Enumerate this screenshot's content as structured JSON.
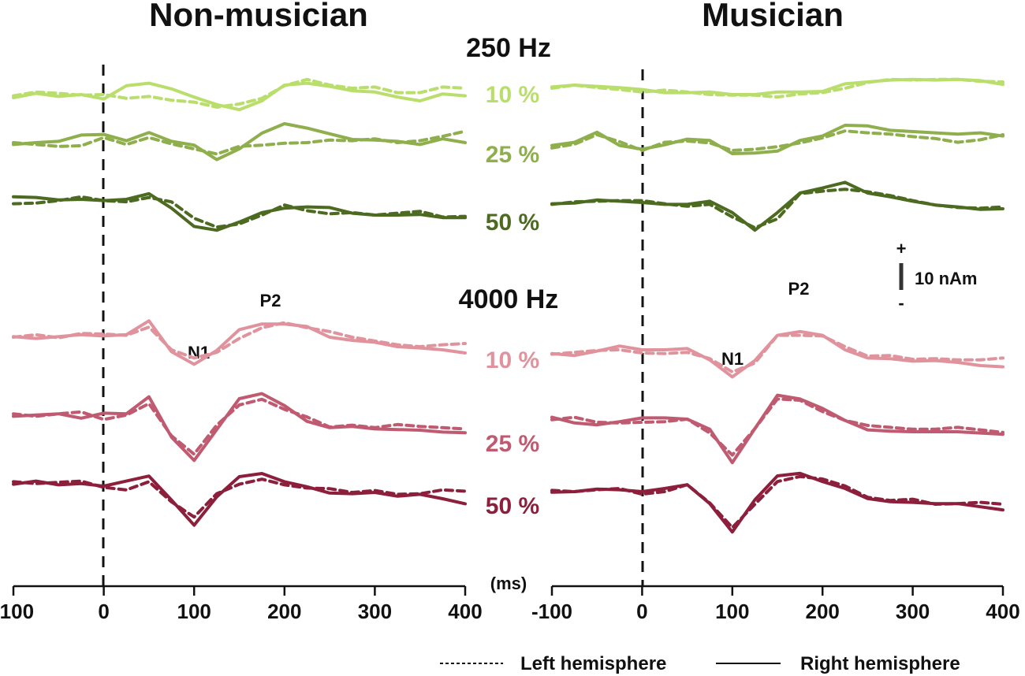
{
  "chart_data": {
    "type": "line",
    "panels": [
      {
        "title": "Non-musician"
      },
      {
        "title": "Musician"
      }
    ],
    "x": [
      -100,
      -75,
      -50,
      -25,
      0,
      25,
      50,
      75,
      100,
      125,
      150,
      175,
      200,
      225,
      250,
      275,
      300,
      325,
      350,
      375,
      400
    ],
    "xlim": [
      -100,
      400
    ],
    "xticks": [
      "-100",
      "0",
      "100",
      "200",
      "300",
      "400"
    ],
    "xlabel": "(ms)",
    "scale_bar": {
      "label": "10 nAm",
      "plus": "+",
      "minus": "-"
    },
    "legend": {
      "left": "Left hemisphere",
      "right": "Right hemisphere"
    },
    "frequencies": [
      {
        "label": "250 Hz",
        "conditions": [
          {
            "label": "10 %",
            "color": "#b9de6b",
            "nonmusician": {
              "right": [
                -0.5,
                0.2,
                -0.3,
                0,
                -0.7,
                1.4,
                1.8,
                0.9,
                -0.4,
                -1.6,
                -2.4,
                -1,
                1.5,
                1.8,
                1.3,
                0.6,
                0.4,
                -0.4,
                -1,
                0.1,
                -0.2
              ],
              "left": [
                -0.2,
                0.4,
                0.2,
                -0.1,
                0,
                -0.6,
                -0.3,
                -0.9,
                -1.2,
                -2,
                -1.5,
                -0.6,
                1.4,
                2.4,
                1.5,
                1,
                1.2,
                0.3,
                0.3,
                1.2,
                1
              ]
            },
            "musician": {
              "right": [
                0.2,
                0.5,
                0.3,
                0.1,
                -0.2,
                -0.7,
                -0.7,
                -0.6,
                -1,
                -1,
                -0.6,
                -0.6,
                -0.5,
                0.7,
                1,
                1.3,
                1.4,
                1.3,
                1.4,
                1.2,
                0.6
              ],
              "left": [
                0,
                0.5,
                0.1,
                -0.2,
                -0.6,
                -0.3,
                -0.6,
                -1,
                -1.1,
                -1.1,
                -1.4,
                -0.9,
                -0.7,
                0,
                0.9,
                1.4,
                1.3,
                1.4,
                1.4,
                1.1,
                1
              ]
            }
          },
          {
            "label": "25 %",
            "color": "#8fae4c",
            "nonmusician": {
              "right": [
                -0.3,
                0,
                0.2,
                1.2,
                1.3,
                0.3,
                1.6,
                0.2,
                -0.4,
                -2.7,
                -1,
                1.5,
                3,
                2.3,
                1.4,
                0.5,
                0.4,
                0.2,
                -0.3,
                0.6,
                0
              ],
              "left": [
                0,
                -0.3,
                -0.6,
                -0.5,
                0.8,
                -0.3,
                0.8,
                -0.2,
                -1,
                -1.8,
                -0.6,
                -0.4,
                -0.1,
                0,
                0.4,
                0.3,
                0.6,
                0,
                0.3,
                1,
                1.8
              ]
            },
            "musician": {
              "right": [
                -0.2,
                0.3,
                1.9,
                -0.2,
                -0.8,
                -0.1,
                0.8,
                0.6,
                -1.5,
                -1.4,
                -1.1,
                0.6,
                1.3,
                3,
                2.9,
                2.2,
                2,
                1.8,
                1.6,
                1.8,
                1.3
              ],
              "left": [
                -0.6,
                0,
                1.5,
                0.4,
                -1,
                0.3,
                0.5,
                0.2,
                -1,
                -0.8,
                -0.4,
                0.2,
                1,
                2.1,
                1.8,
                1.6,
                1.2,
                0.9,
                0.3,
                0.7,
                1.5
              ]
            }
          },
          {
            "label": "50 %",
            "color": "#4c6a20",
            "nonmusician": {
              "right": [
                0.9,
                0.8,
                0.4,
                0.5,
                0.3,
                0.5,
                1.4,
                -0.9,
                -3.8,
                -4.4,
                -3.1,
                -1.6,
                -0.9,
                -0.7,
                -0.8,
                -1.7,
                -2,
                -2,
                -1.9,
                -2.4,
                -2.4
              ],
              "left": [
                -0.2,
                -0.1,
                0.3,
                0.9,
                0.3,
                0.1,
                0.8,
                0.1,
                -2.5,
                -3.9,
                -3.4,
                -2,
                -0.4,
                -1.3,
                -1.8,
                -1.6,
                -2,
                -1.7,
                -1.4,
                -2.3,
                -2.2
              ]
            },
            "musician": {
              "right": [
                0.3,
                0.4,
                0.9,
                0.7,
                0.5,
                0.2,
                0.2,
                0.7,
                -1.1,
                -3.9,
                -1.1,
                2,
                2.8,
                3.7,
                2,
                1.4,
                0.7,
                0.1,
                -0.2,
                -0.6,
                -0.5
              ],
              "left": [
                0.2,
                0.6,
                0.7,
                0.8,
                0.8,
                0.3,
                -0.1,
                0.2,
                -1.8,
                -3.5,
                -2.1,
                1.9,
                2.3,
                2.6,
                2.2,
                1.6,
                0.8,
                0.1,
                -0.3,
                -0.4,
                -0.2
              ]
            }
          }
        ]
      },
      {
        "label": "4000 Hz",
        "conditions": [
          {
            "label": "10 %",
            "color": "#e0939d",
            "nonmusician": {
              "right": [
                0.1,
                -0.2,
                0.1,
                0.4,
                0.2,
                0.4,
                2.6,
                -2.3,
                -4.3,
                -2.1,
                1.2,
                2.1,
                2.1,
                1.7,
                0,
                -0.5,
                -0.8,
                -1.5,
                -1.7,
                -2,
                -2.5
              ],
              "left": [
                0,
                0.4,
                -0.1,
                0.6,
                0.5,
                0.3,
                1.6,
                -2,
                -3.3,
                -2.4,
                -0.2,
                1.5,
                2.3,
                1.5,
                0.9,
                0,
                -0.6,
                -1.2,
                -1.5,
                -1.2,
                -1
              ]
            },
            "musician": {
              "right": [
                -0.1,
                -0.4,
                0.3,
                1.1,
                0.5,
                0.5,
                0.7,
                -1.1,
                -3.8,
                -1.2,
                2.8,
                3.4,
                2.8,
                0.5,
                -0.8,
                -0.9,
                -1.3,
                -1.2,
                -1.5,
                -2,
                -2.2
              ],
              "left": [
                -0.2,
                0.1,
                0.4,
                0.5,
                0,
                -0.1,
                0.1,
                -0.9,
                -3,
                -1.6,
                2.8,
                2.8,
                2.7,
                1,
                -0.5,
                -0.4,
                -1,
                -0.9,
                -1.1,
                -1.1,
                -0.8
              ]
            }
          },
          {
            "label": "25 %",
            "color": "#c05a70",
            "nonmusician": {
              "right": [
                -0.3,
                -0.1,
                0.1,
                -0.6,
                0.2,
                0.1,
                2.8,
                -3.6,
                -7.3,
                -2.4,
                2.5,
                3.3,
                1.4,
                -1.1,
                -2.1,
                -1.9,
                -2.3,
                -2.4,
                -2.5,
                -2.8,
                -2.9
              ],
              "left": [
                0.1,
                -0.3,
                0.1,
                0.4,
                -0.8,
                -0.1,
                1.7,
                -3.4,
                -6.3,
                -1.7,
                1.5,
                2.4,
                0.8,
                -0.4,
                -2,
                -1.7,
                -2.1,
                -1.6,
                -1.9,
                -2.1,
                -2.3
              ]
            },
            "musician": {
              "right": [
                0.3,
                -0.6,
                -0.9,
                -0.4,
                0.2,
                0.2,
                0,
                -1.6,
                -6.9,
                -1.5,
                3.8,
                3.2,
                1.7,
                -0.2,
                -1.7,
                -1.9,
                -2,
                -2,
                -2,
                -2.2,
                -2.4
              ],
              "left": [
                -0.1,
                0.3,
                -0.5,
                -0.6,
                -0.5,
                -0.4,
                0,
                -2.2,
                -5.7,
                -1.5,
                3.2,
                3,
                1.2,
                -0.2,
                -1,
                -1.3,
                -1.6,
                -1.6,
                -1.3,
                -1.7,
                -2.1
              ]
            }
          },
          {
            "label": "50 %",
            "color": "#8c1f3c",
            "nonmusician": {
              "right": [
                -0.2,
                0.3,
                -0.3,
                -0.1,
                -0.5,
                0.3,
                1.1,
                -2.7,
                -6.7,
                -2.2,
                1,
                1.5,
                0.2,
                -0.6,
                -1.6,
                -1.7,
                -1.5,
                -2.1,
                -1.8,
                -2.5,
                -3.3
              ],
              "left": [
                0.2,
                -0.1,
                0.1,
                0.3,
                -0.7,
                -1.1,
                0.2,
                -3,
                -5.4,
                -1.7,
                -0.2,
                0.6,
                -0.3,
                -0.8,
                -0.9,
                -1.5,
                -1.2,
                -1.8,
                -1.7,
                -1.1,
                -1.3
              ]
            },
            "musician": {
              "right": [
                -0.1,
                0,
                0.4,
                0.3,
                0,
                0.5,
                1.1,
                -1.9,
                -6.4,
                -1.3,
                2.5,
                2.9,
                1.6,
                0.5,
                -1.1,
                -1.6,
                -1.7,
                -1.9,
                -1.9,
                -2.4,
                -2.9
              ],
              "left": [
                0.2,
                0,
                0.3,
                0.5,
                -0.4,
                0,
                1.1,
                -1.8,
                -5.7,
                -2,
                1.6,
                2.4,
                2,
                0.9,
                -0.9,
                -1.4,
                -1.2,
                -2,
                -1.9,
                -1.7,
                -2
              ]
            }
          }
        ],
        "peaks": {
          "n1": "N1",
          "p2": "P2"
        }
      }
    ]
  }
}
